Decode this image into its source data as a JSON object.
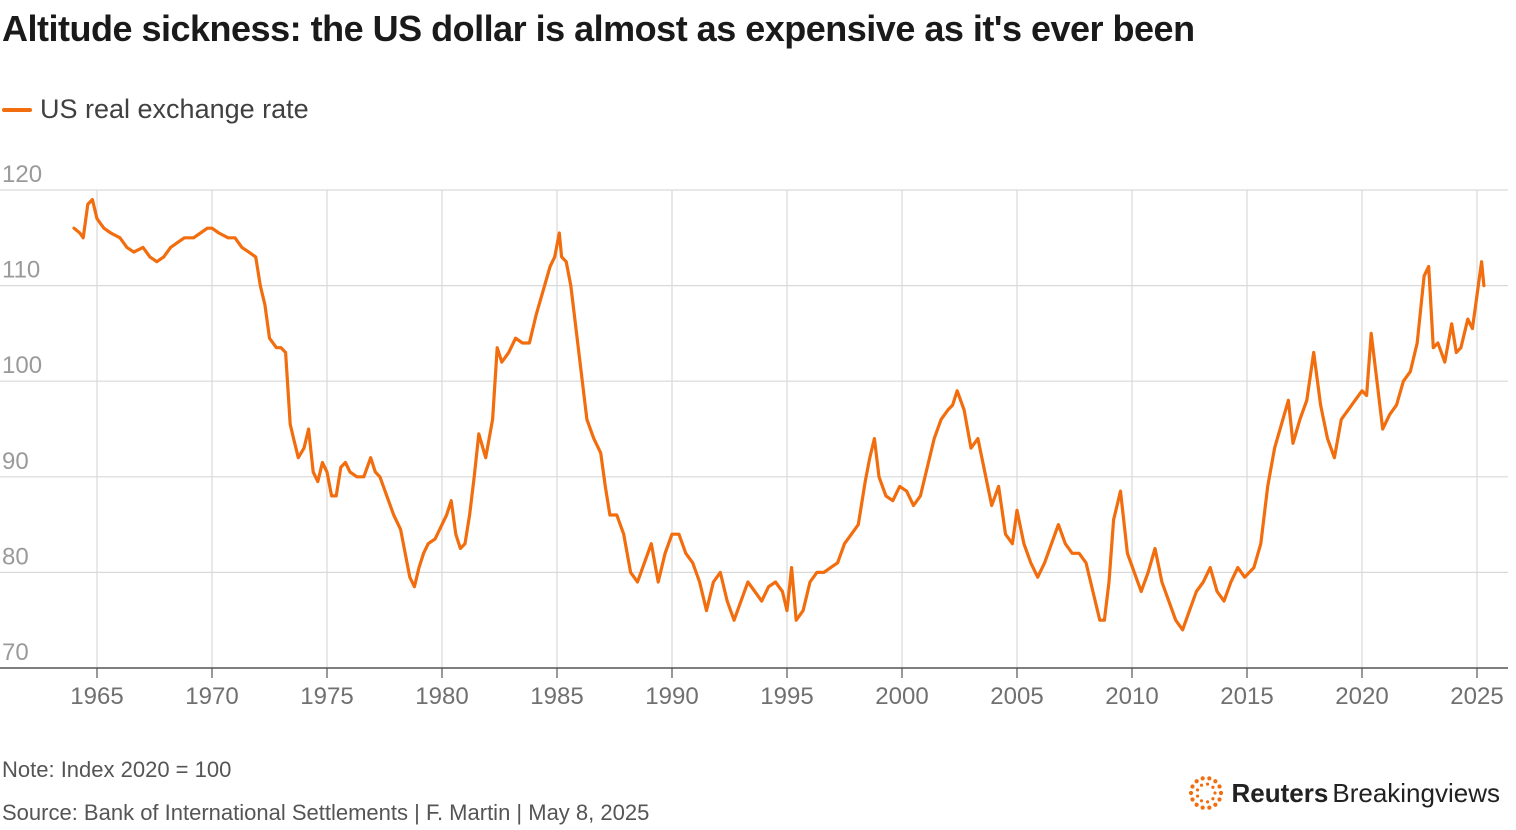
{
  "header": {
    "title": "Altitude sickness: the US dollar is almost as expensive as it's ever been"
  },
  "footer": {
    "note": "Note: Index 2020 = 100",
    "source": "Source: Bank of International Settlements | F. Martin | May 8, 2025",
    "brand_primary": "Reuters",
    "brand_secondary": "Breakingviews"
  },
  "colors": {
    "series": "#f26d0d",
    "grid": "#d9d9d9",
    "axis_text": "#9a9a9a",
    "brand_accent": "#f26d0d"
  },
  "icons": [
    "reuters-logo-icon"
  ],
  "chart_data": {
    "type": "line",
    "title": "Altitude sickness: the US dollar is almost as expensive as it's ever been",
    "xlabel": "",
    "ylabel": "",
    "xlim": [
      1963.5,
      2025.8
    ],
    "ylim": [
      70,
      120
    ],
    "grid": true,
    "legend_position": "top-left",
    "x_ticks": [
      1965,
      1970,
      1975,
      1980,
      1985,
      1990,
      1995,
      2000,
      2005,
      2010,
      2015,
      2020,
      2025
    ],
    "y_ticks": [
      70,
      80,
      90,
      100,
      110,
      120
    ],
    "series": [
      {
        "name": "US real exchange rate",
        "color": "#f26d0d",
        "x": [
          1964.0,
          1964.25,
          1964.4,
          1964.6,
          1964.8,
          1965.0,
          1965.3,
          1965.6,
          1966.0,
          1966.3,
          1966.6,
          1967.0,
          1967.3,
          1967.6,
          1967.9,
          1968.2,
          1968.5,
          1968.8,
          1969.2,
          1969.5,
          1969.8,
          1970.0,
          1970.3,
          1970.7,
          1971.0,
          1971.3,
          1971.6,
          1971.9,
          1972.1,
          1972.3,
          1972.5,
          1972.8,
          1973.0,
          1973.2,
          1973.4,
          1973.55,
          1973.75,
          1974.0,
          1974.2,
          1974.4,
          1974.6,
          1974.8,
          1975.0,
          1975.2,
          1975.4,
          1975.6,
          1975.8,
          1976.0,
          1976.3,
          1976.6,
          1976.9,
          1977.1,
          1977.3,
          1977.6,
          1977.9,
          1978.2,
          1978.4,
          1978.6,
          1978.8,
          1979.0,
          1979.2,
          1979.4,
          1979.7,
          1980.0,
          1980.2,
          1980.4,
          1980.6,
          1980.8,
          1981.0,
          1981.2,
          1981.4,
          1981.6,
          1981.9,
          1982.2,
          1982.4,
          1982.6,
          1982.9,
          1983.2,
          1983.5,
          1983.8,
          1984.1,
          1984.4,
          1984.7,
          1984.9,
          1985.1,
          1985.2,
          1985.4,
          1985.6,
          1985.8,
          1986.0,
          1986.3,
          1986.6,
          1986.9,
          1987.1,
          1987.3,
          1987.6,
          1987.9,
          1988.2,
          1988.5,
          1988.8,
          1989.1,
          1989.4,
          1989.7,
          1990.0,
          1990.3,
          1990.6,
          1990.9,
          1991.2,
          1991.5,
          1991.8,
          1992.1,
          1992.4,
          1992.7,
          1993.0,
          1993.3,
          1993.6,
          1993.9,
          1994.2,
          1994.5,
          1994.8,
          1995.0,
          1995.2,
          1995.4,
          1995.7,
          1996.0,
          1996.3,
          1996.6,
          1996.9,
          1997.2,
          1997.5,
          1997.8,
          1998.1,
          1998.4,
          1998.6,
          1998.8,
          1999.0,
          1999.3,
          1999.6,
          1999.9,
          2000.2,
          2000.5,
          2000.8,
          2001.1,
          2001.4,
          2001.7,
          2002.0,
          2002.2,
          2002.4,
          2002.7,
          2003.0,
          2003.3,
          2003.6,
          2003.9,
          2004.2,
          2004.5,
          2004.8,
          2005.0,
          2005.3,
          2005.6,
          2005.9,
          2006.2,
          2006.5,
          2006.8,
          2007.1,
          2007.4,
          2007.7,
          2008.0,
          2008.3,
          2008.6,
          2008.8,
          2009.0,
          2009.2,
          2009.5,
          2009.8,
          2010.1,
          2010.4,
          2010.7,
          2011.0,
          2011.3,
          2011.6,
          2011.9,
          2012.2,
          2012.5,
          2012.8,
          2013.1,
          2013.4,
          2013.7,
          2014.0,
          2014.3,
          2014.6,
          2014.9,
          2015.1,
          2015.3,
          2015.6,
          2015.9,
          2016.2,
          2016.5,
          2016.8,
          2017.0,
          2017.3,
          2017.6,
          2017.9,
          2018.2,
          2018.5,
          2018.8,
          2019.1,
          2019.4,
          2019.7,
          2020.0,
          2020.2,
          2020.4,
          2020.6,
          2020.9,
          2021.2,
          2021.5,
          2021.8,
          2022.1,
          2022.4,
          2022.7,
          2022.9,
          2023.1,
          2023.3,
          2023.6,
          2023.9,
          2024.1,
          2024.3,
          2024.6,
          2024.8,
          2025.0,
          2025.2,
          2025.3
        ],
        "values": [
          116,
          115.5,
          115,
          118.5,
          119,
          117,
          116,
          115.5,
          115,
          114,
          113.5,
          114,
          113,
          112.5,
          113,
          114,
          114.5,
          115,
          115,
          115.5,
          116,
          116,
          115.5,
          115,
          115,
          114,
          113.5,
          113,
          110,
          108,
          104.5,
          103.5,
          103.5,
          103,
          95.5,
          94,
          92,
          93,
          95,
          90.5,
          89.5,
          91.5,
          90.5,
          88,
          88,
          91,
          91.5,
          90.5,
          90,
          90,
          92,
          90.5,
          90,
          88,
          86,
          84.5,
          82,
          79.5,
          78.5,
          80.5,
          82,
          83,
          83.5,
          85,
          86,
          87.5,
          84,
          82.5,
          83,
          86,
          90,
          94.5,
          92,
          96,
          103.5,
          102,
          103,
          104.5,
          104,
          104,
          107,
          109.5,
          112,
          113,
          115.5,
          113,
          112.5,
          110,
          106,
          102,
          96,
          94,
          92.5,
          89,
          86,
          86,
          84,
          80,
          79,
          81,
          83,
          79,
          82,
          84,
          84,
          82,
          81,
          79,
          76,
          79,
          80,
          77,
          75,
          77,
          79,
          78,
          77,
          78.5,
          79,
          78,
          76,
          80.5,
          75,
          76,
          79,
          80,
          80,
          80.5,
          81,
          83,
          84,
          85,
          89.5,
          92,
          94,
          90,
          88,
          87.5,
          89,
          88.5,
          87,
          88,
          91,
          94,
          96,
          97,
          97.5,
          99,
          97,
          93,
          94,
          90.5,
          87,
          89,
          84,
          83,
          86.5,
          83,
          81,
          79.5,
          81,
          83,
          85,
          83,
          82,
          82,
          81,
          78,
          75,
          75,
          79,
          85.5,
          88.5,
          82,
          80,
          78,
          80,
          82.5,
          79,
          77,
          75,
          74,
          76,
          78,
          79,
          80.5,
          78,
          77,
          79,
          80.5,
          79.5,
          80,
          80.5,
          83,
          89,
          93,
          95.5,
          98,
          93.5,
          96,
          98,
          103,
          97.5,
          94,
          92,
          96,
          97,
          98,
          99,
          98.5,
          105,
          101,
          95,
          96.5,
          97.5,
          100,
          101,
          104,
          111,
          112,
          103.5,
          104,
          102,
          106,
          103,
          103.5,
          106.5,
          105.5,
          109,
          112.5,
          110
        ]
      }
    ]
  }
}
